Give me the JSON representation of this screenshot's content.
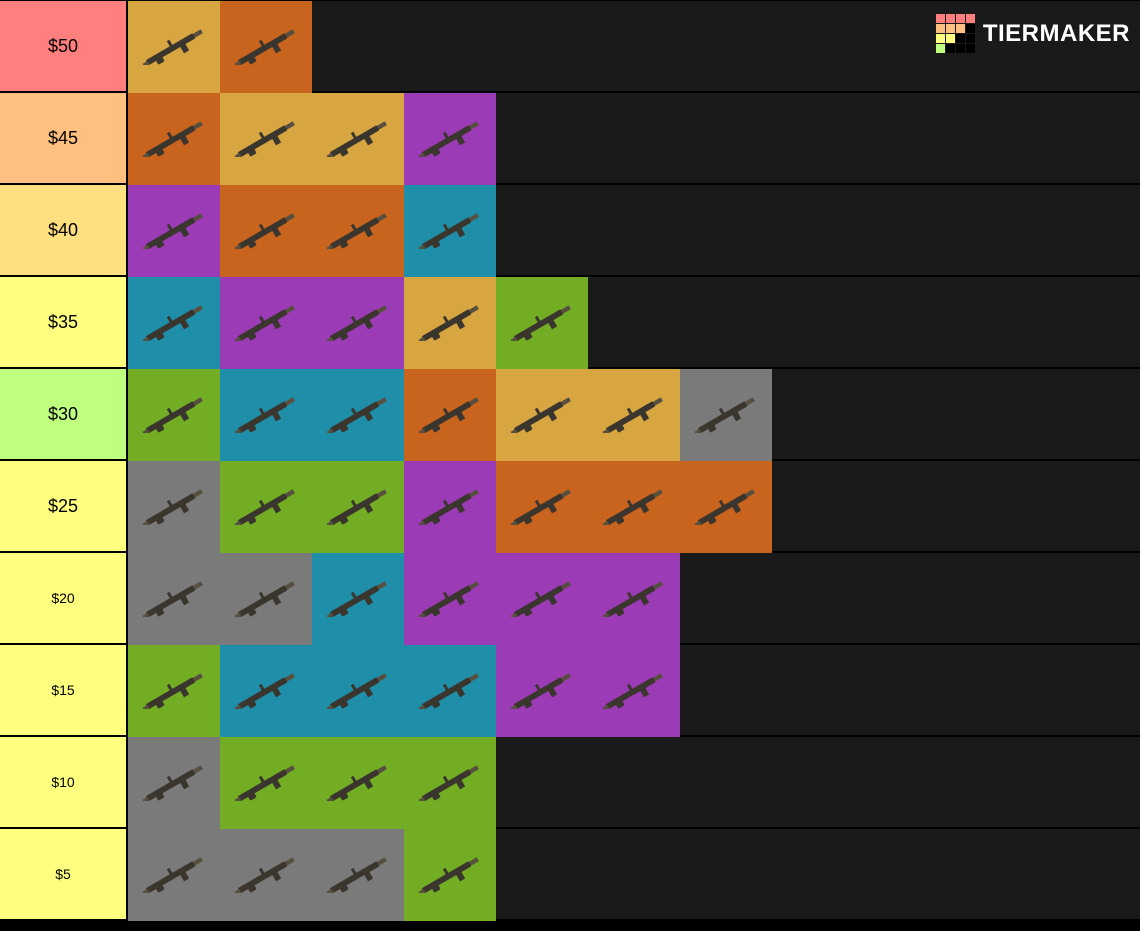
{
  "brand": {
    "name": "TIERMAKER"
  },
  "logo_grid_colors": [
    "#ff7f7f",
    "#ff7f7f",
    "#ff7f7f",
    "#ff7f7f",
    "#ffbf7f",
    "#ffbf7f",
    "#ffbf7f",
    "#000000",
    "#ffff7f",
    "#ffff7f",
    "#000000",
    "#000000",
    "#bfff7f",
    "#000000",
    "#000000",
    "#000000"
  ],
  "tile_colors": {
    "gold": "#d7a640",
    "orange": "#c9641f",
    "purple": "#9b3bb5",
    "teal": "#1f8ea8",
    "green": "#72ad24",
    "gray": "#7a7a7a"
  },
  "row_label_colors": {
    "r50": "#ff7f7f",
    "r45": "#ffbf7f",
    "r40": "#ffdf7f",
    "r35": "#ffff7f",
    "r30": "#bfff7f",
    "r25": "#ffff7f",
    "r20": "#ffff7f",
    "r15": "#ffff7f",
    "r10": "#ffff7f",
    "r5": "#ffff7f"
  },
  "tiers": [
    {
      "label": "$50",
      "label_key": "r50",
      "small": false,
      "items": [
        {
          "bg": "gold",
          "name": "scar-rifle-legendary"
        },
        {
          "bg": "orange",
          "name": "sniper-rifle-epic"
        }
      ]
    },
    {
      "label": "$45",
      "label_key": "r45",
      "small": false,
      "items": [
        {
          "bg": "orange",
          "name": "scar-rifle-epic"
        },
        {
          "bg": "gold",
          "name": "burst-rifle-legendary"
        },
        {
          "bg": "gold",
          "name": "pump-shotgun-legendary"
        },
        {
          "bg": "purple",
          "name": "sniper-rifle-rare"
        }
      ]
    },
    {
      "label": "$40",
      "label_key": "r40",
      "small": false,
      "items": [
        {
          "bg": "purple",
          "name": "scar-rifle-rare"
        },
        {
          "bg": "orange",
          "name": "burst-rifle-epic"
        },
        {
          "bg": "orange",
          "name": "pump-shotgun-epic"
        },
        {
          "bg": "teal",
          "name": "sniper-rifle-uncommon"
        }
      ]
    },
    {
      "label": "$35",
      "label_key": "r35",
      "small": false,
      "items": [
        {
          "bg": "teal",
          "name": "scar-rifle-uncommon"
        },
        {
          "bg": "purple",
          "name": "burst-rifle-rare"
        },
        {
          "bg": "purple",
          "name": "pump-shotgun-rare"
        },
        {
          "bg": "gold",
          "name": "ak-rifle-legendary"
        },
        {
          "bg": "green",
          "name": "sniper-rifle-common"
        }
      ]
    },
    {
      "label": "$30",
      "label_key": "r30",
      "small": false,
      "items": [
        {
          "bg": "green",
          "name": "scar-rifle-common"
        },
        {
          "bg": "teal",
          "name": "burst-rifle-uncommon"
        },
        {
          "bg": "teal",
          "name": "pump-shotgun-uncommon"
        },
        {
          "bg": "orange",
          "name": "ak-rifle-epic"
        },
        {
          "bg": "gold",
          "name": "smg-legendary"
        },
        {
          "bg": "gold",
          "name": "hand-cannon-legendary"
        },
        {
          "bg": "gray",
          "name": "sniper-rifle-basic"
        }
      ]
    },
    {
      "label": "$25",
      "label_key": "r25",
      "small": false,
      "items": [
        {
          "bg": "gray",
          "name": "scar-rifle-basic"
        },
        {
          "bg": "green",
          "name": "burst-rifle-common"
        },
        {
          "bg": "green",
          "name": "pump-shotgun-common"
        },
        {
          "bg": "purple",
          "name": "ak-rifle-rare"
        },
        {
          "bg": "orange",
          "name": "smg-epic"
        },
        {
          "bg": "orange",
          "name": "hand-cannon-epic"
        },
        {
          "bg": "orange",
          "name": "compact-smg-epic"
        }
      ]
    },
    {
      "label": "$20",
      "label_key": "r20",
      "small": true,
      "items": [
        {
          "bg": "gray",
          "name": "burst-rifle-basic"
        },
        {
          "bg": "gray",
          "name": "pump-shotgun-basic"
        },
        {
          "bg": "teal",
          "name": "ak-rifle-uncommon"
        },
        {
          "bg": "purple",
          "name": "smg-rare"
        },
        {
          "bg": "purple",
          "name": "hand-cannon-rare"
        },
        {
          "bg": "purple",
          "name": "compact-smg-rare"
        }
      ]
    },
    {
      "label": "$15",
      "label_key": "r15",
      "small": true,
      "items": [
        {
          "bg": "green",
          "name": "ak-rifle-common"
        },
        {
          "bg": "teal",
          "name": "smg-uncommon"
        },
        {
          "bg": "teal",
          "name": "hand-cannon-uncommon"
        },
        {
          "bg": "teal",
          "name": "compact-smg-uncommon"
        },
        {
          "bg": "purple",
          "name": "shield-grenade-rare"
        },
        {
          "bg": "purple",
          "name": "grappler-rare"
        }
      ]
    },
    {
      "label": "$10",
      "label_key": "r10",
      "small": true,
      "items": [
        {
          "bg": "gray",
          "name": "ak-rifle-basic"
        },
        {
          "bg": "green",
          "name": "smg-common"
        },
        {
          "bg": "green",
          "name": "hand-cannon-common"
        },
        {
          "bg": "green",
          "name": "compact-smg-common"
        }
      ]
    },
    {
      "label": "$5",
      "label_key": "r5",
      "small": true,
      "items": [
        {
          "bg": "gray",
          "name": "smg-basic"
        },
        {
          "bg": "gray",
          "name": "hand-cannon-basic"
        },
        {
          "bg": "gray",
          "name": "compact-smg-basic"
        },
        {
          "bg": "green",
          "name": "harpoon-common"
        }
      ]
    }
  ]
}
